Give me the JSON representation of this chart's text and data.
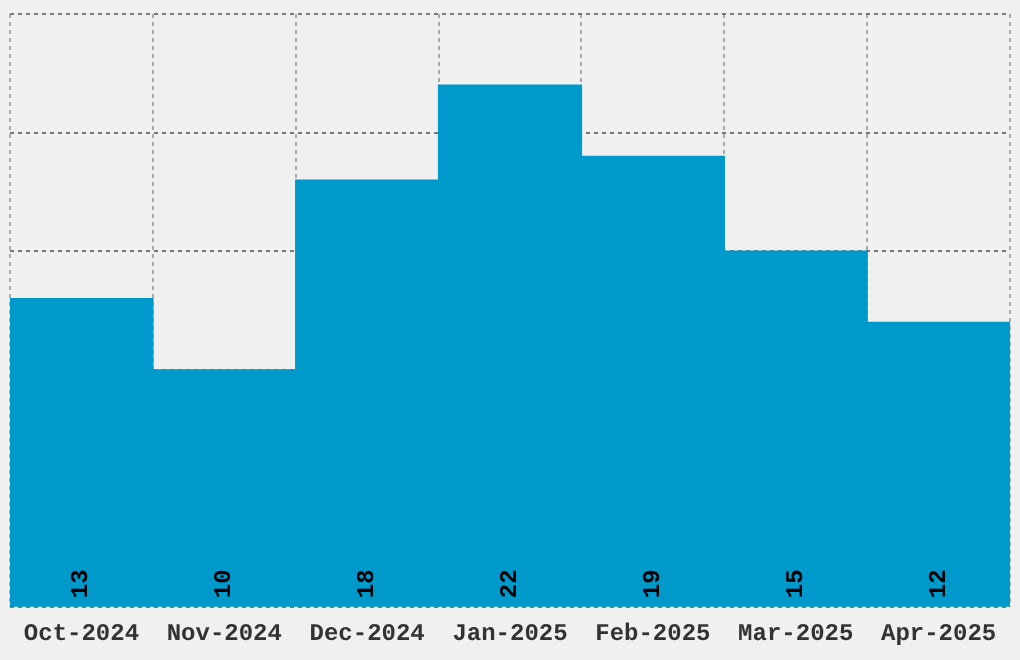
{
  "chart_data": {
    "type": "bar",
    "categories": [
      "Oct-2024",
      "Nov-2024",
      "Dec-2024",
      "Jan-2025",
      "Feb-2025",
      "Mar-2025",
      "Apr-2025"
    ],
    "values": [
      13,
      10,
      18,
      22,
      19,
      15,
      12
    ],
    "color": "#0099cc",
    "data_labels": true,
    "grid": true,
    "tick_labels": "x"
  }
}
